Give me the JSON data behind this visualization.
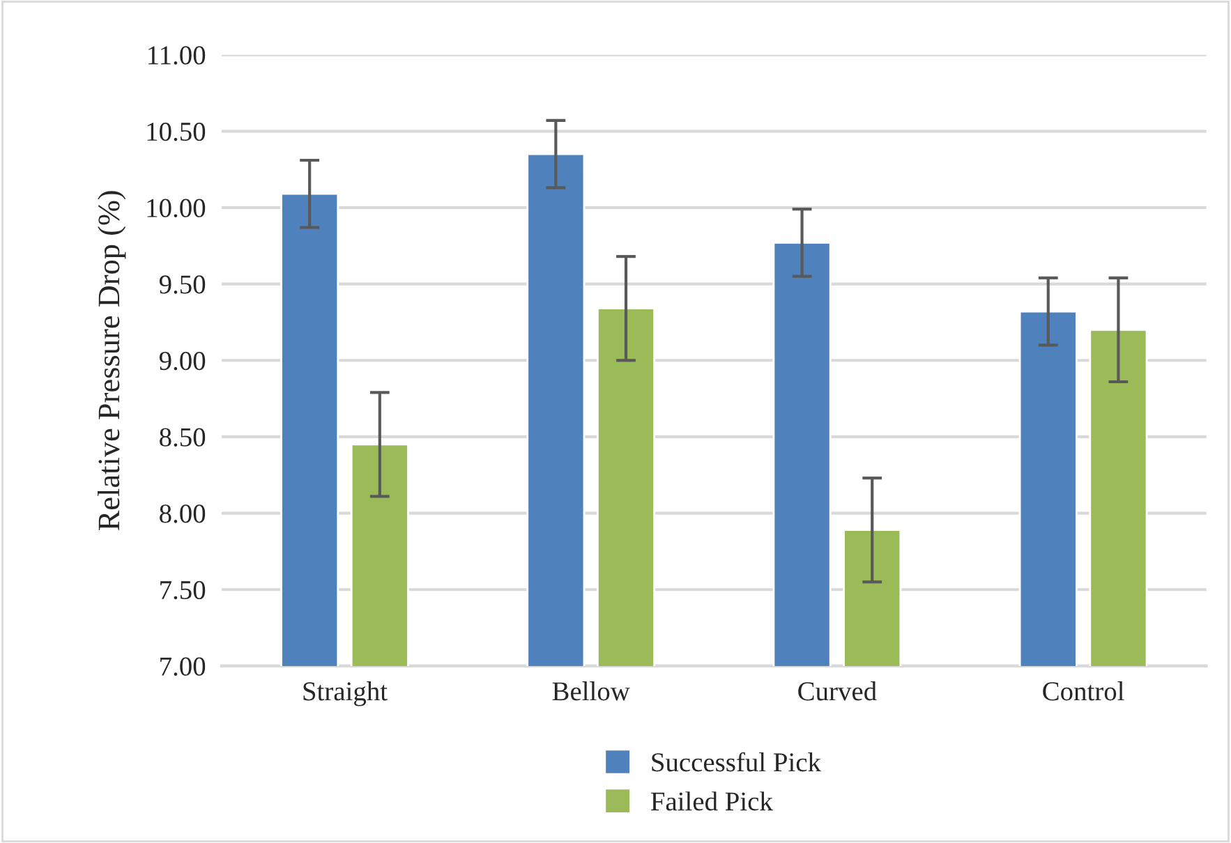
{
  "chart_data": {
    "type": "bar",
    "ylabel": "Relative Pressure Drop (%)",
    "categories": [
      "Straight",
      "Bellow",
      "Curved",
      "Control"
    ],
    "series": [
      {
        "name": "Successful Pick",
        "color": "#4f81bd",
        "values": [
          10.09,
          10.35,
          9.77,
          9.32
        ],
        "errors": [
          0.22,
          0.22,
          0.22,
          0.22
        ]
      },
      {
        "name": "Failed Pick",
        "color": "#9bbb59",
        "values": [
          8.45,
          9.34,
          7.89,
          9.2
        ],
        "errors": [
          0.34,
          0.34,
          0.34,
          0.34
        ]
      }
    ],
    "ylim": [
      7,
      11
    ],
    "yticks": [
      {
        "value": 7,
        "label": "7.00"
      },
      {
        "value": 7.5,
        "label": "7.50"
      },
      {
        "value": 8,
        "label": "8.00"
      },
      {
        "value": 8.5,
        "label": "8.50"
      },
      {
        "value": 9,
        "label": "9.00"
      },
      {
        "value": 9.5,
        "label": "9.50"
      },
      {
        "value": 10,
        "label": "10.00"
      },
      {
        "value": 10.5,
        "label": "10.50"
      },
      {
        "value": 11,
        "label": "11.00"
      }
    ],
    "grid": "y",
    "legend": "bottom"
  }
}
